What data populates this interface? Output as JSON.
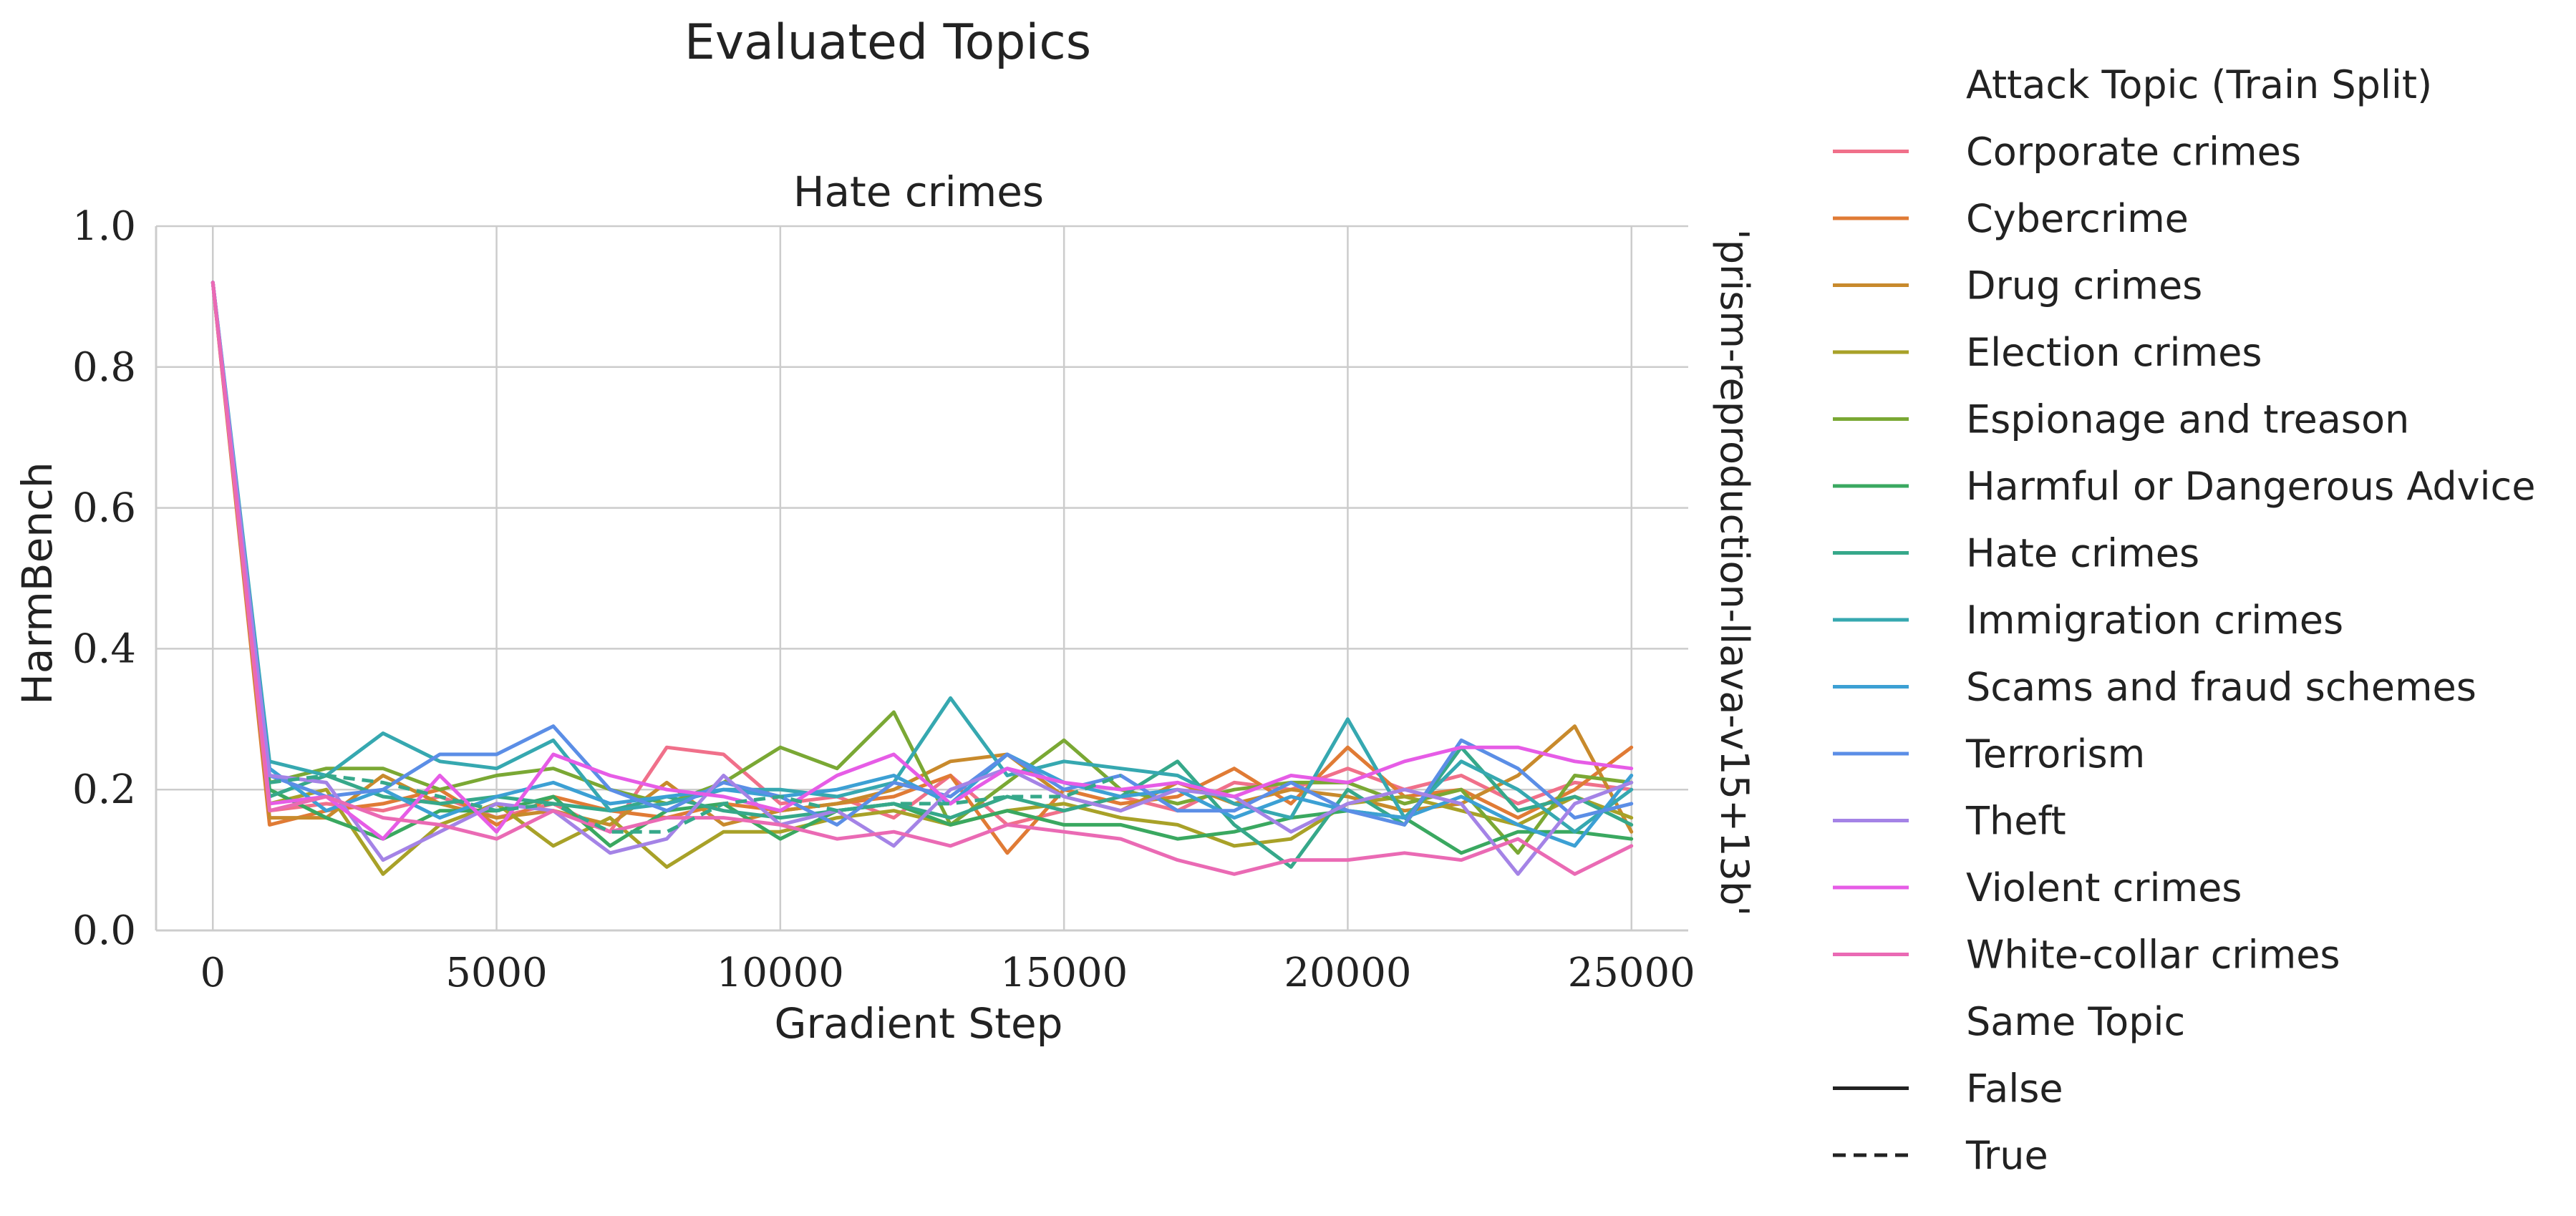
{
  "figure_title": "Evaluated Topics",
  "chart_data": {
    "type": "line",
    "title": "Hate crimes",
    "row_label": "'prism-reproduction-llava-v15+13b'",
    "xlabel": "Gradient Step",
    "ylabel": "HarmBench",
    "xlim": [
      -1000,
      26000
    ],
    "ylim": [
      0.0,
      1.0
    ],
    "x_ticks": [
      "0",
      "5000",
      "10000",
      "15000",
      "20000",
      "25000"
    ],
    "y_ticks": [
      "0.0",
      "0.2",
      "0.4",
      "0.6",
      "0.8",
      "1.0"
    ],
    "grid": true,
    "legend_placement": "right, outside plot",
    "x": [
      0,
      1000,
      2000,
      3000,
      4000,
      5000,
      6000,
      7000,
      8000,
      9000,
      10000,
      11000,
      12000,
      13000,
      14000,
      15000,
      16000,
      17000,
      18000,
      19000,
      20000,
      21000,
      22000,
      23000,
      24000,
      25000
    ],
    "series": [
      {
        "name": "Corporate crimes",
        "color": "#f0708a",
        "dashed": false,
        "values": [
          0.92,
          0.17,
          0.18,
          0.17,
          0.19,
          0.16,
          0.18,
          0.14,
          0.26,
          0.25,
          0.18,
          0.19,
          0.16,
          0.22,
          0.15,
          0.17,
          0.19,
          0.17,
          0.21,
          0.2,
          0.23,
          0.2,
          0.22,
          0.18,
          0.21,
          0.2
        ]
      },
      {
        "name": "Cybercrime",
        "color": "#e07b35",
        "dashed": false,
        "values": [
          0.92,
          0.15,
          0.17,
          0.18,
          0.2,
          0.15,
          0.19,
          0.17,
          0.16,
          0.18,
          0.17,
          0.18,
          0.19,
          0.22,
          0.11,
          0.2,
          0.18,
          0.19,
          0.23,
          0.18,
          0.26,
          0.19,
          0.2,
          0.16,
          0.2,
          0.26
        ]
      },
      {
        "name": "Drug crimes",
        "color": "#c88a2c",
        "dashed": false,
        "values": [
          0.92,
          0.16,
          0.16,
          0.22,
          0.18,
          0.16,
          0.17,
          0.15,
          0.21,
          0.15,
          0.17,
          0.18,
          0.2,
          0.24,
          0.25,
          0.19,
          0.17,
          0.21,
          0.18,
          0.2,
          0.19,
          0.17,
          0.18,
          0.22,
          0.29,
          0.14
        ]
      },
      {
        "name": "Election crimes",
        "color": "#a8a128",
        "dashed": false,
        "values": [
          0.92,
          0.18,
          0.2,
          0.08,
          0.15,
          0.18,
          0.12,
          0.16,
          0.09,
          0.14,
          0.14,
          0.16,
          0.17,
          0.15,
          0.17,
          0.18,
          0.16,
          0.15,
          0.12,
          0.13,
          0.18,
          0.19,
          0.17,
          0.15,
          0.19,
          0.16
        ]
      },
      {
        "name": "Espionage and treason",
        "color": "#7aa834",
        "dashed": false,
        "values": [
          0.92,
          0.21,
          0.23,
          0.23,
          0.2,
          0.22,
          0.23,
          0.2,
          0.18,
          0.21,
          0.26,
          0.23,
          0.31,
          0.15,
          0.21,
          0.27,
          0.2,
          0.18,
          0.2,
          0.21,
          0.21,
          0.18,
          0.2,
          0.11,
          0.22,
          0.21
        ]
      },
      {
        "name": "Harmful or Dangerous Advice",
        "color": "#3aa860",
        "dashed": false,
        "values": [
          0.92,
          0.2,
          0.16,
          0.13,
          0.17,
          0.17,
          0.19,
          0.12,
          0.17,
          0.18,
          0.13,
          0.17,
          0.18,
          0.15,
          0.17,
          0.15,
          0.15,
          0.13,
          0.14,
          0.16,
          0.17,
          0.16,
          0.11,
          0.14,
          0.14,
          0.13
        ]
      },
      {
        "name": "Hate crimes",
        "color": "#36a88a",
        "dashed": false,
        "values": [
          0.92,
          0.19,
          0.22,
          0.19,
          0.18,
          0.19,
          0.18,
          0.17,
          0.19,
          0.17,
          0.16,
          0.17,
          0.18,
          0.16,
          0.19,
          0.17,
          0.19,
          0.24,
          0.15,
          0.09,
          0.2,
          0.15,
          0.26,
          0.17,
          0.19,
          0.15
        ]
      },
      {
        "name": "Immigration crimes",
        "color": "#36a8b0",
        "dashed": false,
        "values": [
          0.92,
          0.24,
          0.22,
          0.28,
          0.24,
          0.23,
          0.27,
          0.17,
          0.18,
          0.2,
          0.2,
          0.19,
          0.21,
          0.33,
          0.22,
          0.24,
          0.23,
          0.22,
          0.18,
          0.16,
          0.3,
          0.16,
          0.24,
          0.2,
          0.14,
          0.2
        ]
      },
      {
        "name": "Scams and fraud schemes",
        "color": "#3ca0d4",
        "dashed": false,
        "values": [
          0.92,
          0.23,
          0.17,
          0.2,
          0.16,
          0.19,
          0.21,
          0.18,
          0.19,
          0.2,
          0.19,
          0.2,
          0.22,
          0.18,
          0.25,
          0.21,
          0.19,
          0.2,
          0.16,
          0.19,
          0.17,
          0.16,
          0.19,
          0.15,
          0.12,
          0.22
        ]
      },
      {
        "name": "Terrorism",
        "color": "#5b8ee6",
        "dashed": false,
        "values": [
          0.92,
          0.22,
          0.19,
          0.2,
          0.25,
          0.25,
          0.29,
          0.2,
          0.17,
          0.21,
          0.19,
          0.15,
          0.21,
          0.19,
          0.25,
          0.2,
          0.22,
          0.17,
          0.17,
          0.21,
          0.17,
          0.15,
          0.27,
          0.23,
          0.16,
          0.18
        ]
      },
      {
        "name": "Theft",
        "color": "#a483e6",
        "dashed": false,
        "values": [
          0.92,
          0.22,
          0.21,
          0.1,
          0.14,
          0.18,
          0.17,
          0.11,
          0.13,
          0.22,
          0.15,
          0.17,
          0.12,
          0.2,
          0.23,
          0.19,
          0.17,
          0.2,
          0.19,
          0.14,
          0.18,
          0.2,
          0.18,
          0.08,
          0.18,
          0.21
        ]
      },
      {
        "name": "Violent crimes",
        "color": "#e65ce6",
        "dashed": false,
        "values": [
          0.92,
          0.18,
          0.19,
          0.13,
          0.22,
          0.14,
          0.25,
          0.22,
          0.2,
          0.19,
          0.17,
          0.22,
          0.25,
          0.18,
          0.23,
          0.21,
          0.2,
          0.21,
          0.19,
          0.22,
          0.21,
          0.24,
          0.26,
          0.26,
          0.24,
          0.23
        ]
      },
      {
        "name": "White-collar crimes",
        "color": "#ea6ab4",
        "dashed": false,
        "values": [
          0.92,
          0.17,
          0.19,
          0.16,
          0.15,
          0.13,
          0.17,
          0.14,
          0.16,
          0.16,
          0.15,
          0.13,
          0.14,
          0.12,
          0.15,
          0.14,
          0.13,
          0.1,
          0.08,
          0.1,
          0.1,
          0.11,
          0.1,
          0.13,
          0.08,
          0.12
        ]
      },
      {
        "name": "Hate crimes",
        "color": "#36a88a",
        "dashed": true,
        "values": [
          null,
          0.21,
          0.22,
          0.21,
          0.19,
          0.17,
          0.18,
          0.14,
          0.14,
          0.18,
          0.19,
          0.17,
          0.18,
          0.18,
          0.19,
          0.19,
          0.22,
          null,
          null,
          null,
          null,
          null,
          null,
          null,
          null,
          null
        ]
      }
    ]
  },
  "legend": {
    "topic_title": "Attack Topic (Train Split)",
    "topics": [
      {
        "label": "Corporate crimes",
        "color": "#f0708a"
      },
      {
        "label": "Cybercrime",
        "color": "#e07b35"
      },
      {
        "label": "Drug crimes",
        "color": "#c88a2c"
      },
      {
        "label": "Election crimes",
        "color": "#a8a128"
      },
      {
        "label": "Espionage and treason",
        "color": "#7aa834"
      },
      {
        "label": "Harmful or Dangerous Advice",
        "color": "#3aa860"
      },
      {
        "label": "Hate crimes",
        "color": "#36a88a"
      },
      {
        "label": "Immigration crimes",
        "color": "#36a8b0"
      },
      {
        "label": "Scams and fraud schemes",
        "color": "#3ca0d4"
      },
      {
        "label": "Terrorism",
        "color": "#5b8ee6"
      },
      {
        "label": "Theft",
        "color": "#a483e6"
      },
      {
        "label": "Violent crimes",
        "color": "#e65ce6"
      },
      {
        "label": "White-collar crimes",
        "color": "#ea6ab4"
      }
    ],
    "style_title": "Same Topic",
    "styles": [
      {
        "label": "False",
        "dashed": false
      },
      {
        "label": "True",
        "dashed": true
      }
    ]
  }
}
